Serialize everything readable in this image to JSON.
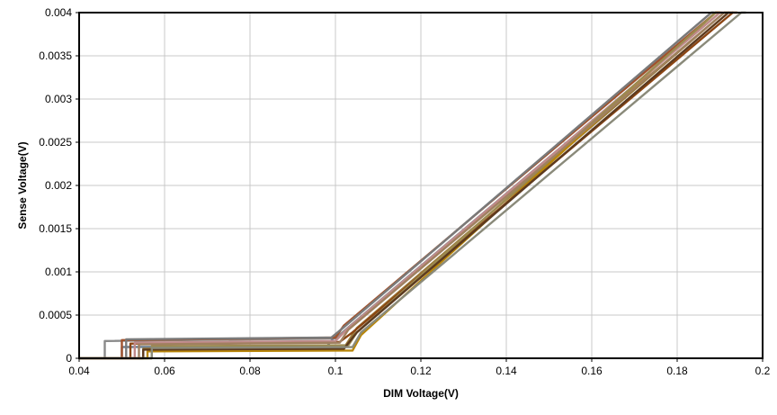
{
  "chart_data": {
    "type": "line",
    "title": "",
    "xlabel": "DIM Voltage(V)",
    "ylabel": "Sense Voltage(V)",
    "xlim": [
      0.04,
      0.2
    ],
    "ylim": [
      0,
      0.004
    ],
    "x_ticks": [
      0.04,
      0.06,
      0.08,
      0.1,
      0.12,
      0.14,
      0.16,
      0.18,
      0.2
    ],
    "x_tick_labels": [
      "0.04",
      "0.06",
      "0.08",
      "0.1",
      "0.12",
      "0.14",
      "0.16",
      "0.18",
      "0.2"
    ],
    "y_ticks": [
      0,
      0.0005,
      0.001,
      0.0015,
      0.002,
      0.0025,
      0.003,
      0.0035,
      0.004
    ],
    "y_tick_labels": [
      "0",
      "0.0005",
      "0.001",
      "0.0015",
      "0.002",
      "0.0025",
      "0.003",
      "0.0035",
      "0.004"
    ],
    "grid": true,
    "legend": "none",
    "series": [
      {
        "color": "#8a8a8a",
        "x": [
          0.04,
          0.046,
          0.046,
          0.1,
          0.104,
          0.19,
          0.1905
        ],
        "y": [
          0,
          0,
          0.0002,
          0.00023,
          0.0004,
          0.004,
          0.004
        ]
      },
      {
        "color": "#6f7f8f",
        "x": [
          0.04,
          0.05,
          0.05,
          0.098,
          0.101,
          0.188,
          0.189
        ],
        "y": [
          0,
          0,
          0.00013,
          0.00014,
          0.00032,
          0.004,
          0.004
        ]
      },
      {
        "color": "#9a7a3a",
        "x": [
          0.04,
          0.055,
          0.055,
          0.102,
          0.105,
          0.191,
          0.192
        ],
        "y": [
          0,
          0,
          0.00011,
          0.00012,
          0.00035,
          0.004,
          0.004
        ]
      },
      {
        "color": "#b8860b",
        "x": [
          0.04,
          0.056,
          0.056,
          0.104,
          0.106,
          0.189,
          0.19
        ],
        "y": [
          0,
          0,
          8e-05,
          9e-05,
          0.00027,
          0.004,
          0.004
        ]
      },
      {
        "color": "#8b4513",
        "x": [
          0.04,
          0.052,
          0.052,
          0.101,
          0.104,
          0.193,
          0.194
        ],
        "y": [
          0,
          0,
          0.00017,
          0.00019,
          0.0003,
          0.004,
          0.004
        ]
      },
      {
        "color": "#a0522d",
        "x": [
          0.04,
          0.05,
          0.05,
          0.1,
          0.102,
          0.189,
          0.19
        ],
        "y": [
          0,
          0,
          0.00021,
          0.00024,
          0.00038,
          0.004,
          0.004
        ]
      },
      {
        "color": "#c08a8a",
        "x": [
          0.04,
          0.053,
          0.053,
          0.1,
          0.103,
          0.19,
          0.191
        ],
        "y": [
          0,
          0,
          0.00018,
          0.0002,
          0.00035,
          0.004,
          0.004
        ]
      },
      {
        "color": "#9c8a50",
        "x": [
          0.04,
          0.057,
          0.057,
          0.103,
          0.105,
          0.189,
          0.1895
        ],
        "y": [
          0,
          0,
          0.00014,
          0.00015,
          0.0003,
          0.004,
          0.004
        ]
      },
      {
        "color": "#7a7a7a",
        "x": [
          0.04,
          0.051,
          0.051,
          0.099,
          0.102,
          0.188,
          0.1885
        ],
        "y": [
          0,
          0,
          0.00022,
          0.00024,
          0.00036,
          0.004,
          0.004
        ]
      },
      {
        "color": "#5c3a1e",
        "x": [
          0.04,
          0.055,
          0.055,
          0.102,
          0.105,
          0.192,
          0.193
        ],
        "y": [
          0,
          0,
          0.0001,
          0.00011,
          0.0003,
          0.004,
          0.004
        ]
      },
      {
        "color": "#8a8a7a",
        "x": [
          0.04,
          0.057,
          0.057,
          0.104,
          0.106,
          0.195,
          0.196
        ],
        "y": [
          0,
          0,
          0.00012,
          0.00013,
          0.0003,
          0.004,
          0.004
        ]
      },
      {
        "color": "#a08060",
        "x": [
          0.04,
          0.054,
          0.054,
          0.101,
          0.103,
          0.191,
          0.192
        ],
        "y": [
          0,
          0,
          0.00016,
          0.00018,
          0.00033,
          0.004,
          0.004
        ]
      }
    ]
  }
}
